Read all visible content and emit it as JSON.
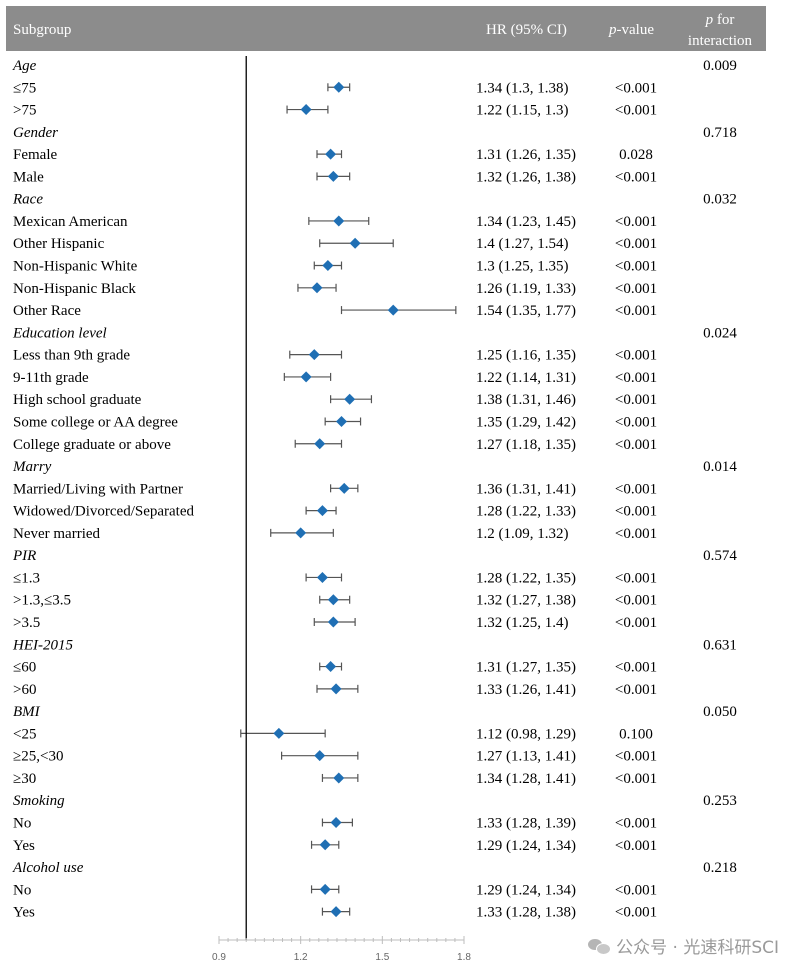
{
  "header": {
    "subgroup": "Subgroup",
    "hr": "HR (95% CI)",
    "pvalue_italic": "p",
    "pvalue_rest": "-value",
    "pint_line1_italic": "p",
    "pint_line1_rest": " for",
    "pint_line2": "interaction"
  },
  "colors": {
    "header_bg": "#8c8c8c",
    "marker": "#1f6fb4",
    "whisker": "#555555",
    "reference_line": "#000000"
  },
  "watermark": "公众号 · 光速科研SCI",
  "chart_data": {
    "type": "forest",
    "reference_value": 1.0,
    "xlim": [
      0.9,
      1.8
    ],
    "x_ticks": [
      "0.9",
      "1.2",
      "1.5",
      "1.8"
    ],
    "rows": [
      {
        "kind": "group",
        "label": "Age",
        "p_interaction": "0.009"
      },
      {
        "kind": "item",
        "label": "≤75",
        "hr": 1.34,
        "lo": 1.3,
        "hi": 1.38,
        "hr_text": "1.34 (1.3, 1.38)",
        "p": "<0.001"
      },
      {
        "kind": "item",
        "label": ">75",
        "hr": 1.22,
        "lo": 1.15,
        "hi": 1.3,
        "hr_text": "1.22 (1.15, 1.3)",
        "p": "<0.001"
      },
      {
        "kind": "group",
        "label": "Gender",
        "p_interaction": "0.718"
      },
      {
        "kind": "item",
        "label": "Female",
        "hr": 1.31,
        "lo": 1.26,
        "hi": 1.35,
        "hr_text": "1.31 (1.26, 1.35)",
        "p": "0.028"
      },
      {
        "kind": "item",
        "label": "Male",
        "hr": 1.32,
        "lo": 1.26,
        "hi": 1.38,
        "hr_text": "1.32 (1.26, 1.38)",
        "p": "<0.001"
      },
      {
        "kind": "group",
        "label": "Race",
        "p_interaction": "0.032"
      },
      {
        "kind": "item",
        "label": "Mexican American",
        "hr": 1.34,
        "lo": 1.23,
        "hi": 1.45,
        "hr_text": "1.34 (1.23, 1.45)",
        "p": "<0.001"
      },
      {
        "kind": "item",
        "label": "Other Hispanic",
        "hr": 1.4,
        "lo": 1.27,
        "hi": 1.54,
        "hr_text": "1.4 (1.27, 1.54)",
        "p": "<0.001"
      },
      {
        "kind": "item",
        "label": "Non-Hispanic White",
        "hr": 1.3,
        "lo": 1.25,
        "hi": 1.35,
        "hr_text": "1.3 (1.25, 1.35)",
        "p": "<0.001"
      },
      {
        "kind": "item",
        "label": "Non-Hispanic Black",
        "hr": 1.26,
        "lo": 1.19,
        "hi": 1.33,
        "hr_text": "1.26 (1.19, 1.33)",
        "p": "<0.001"
      },
      {
        "kind": "item",
        "label": "Other Race",
        "hr": 1.54,
        "lo": 1.35,
        "hi": 1.77,
        "hr_text": "1.54 (1.35, 1.77)",
        "p": "<0.001"
      },
      {
        "kind": "group",
        "label": "Education level",
        "p_interaction": "0.024"
      },
      {
        "kind": "item",
        "label": "Less than 9th grade",
        "hr": 1.25,
        "lo": 1.16,
        "hi": 1.35,
        "hr_text": "1.25 (1.16, 1.35)",
        "p": "<0.001"
      },
      {
        "kind": "item",
        "label": "9-11th grade",
        "hr": 1.22,
        "lo": 1.14,
        "hi": 1.31,
        "hr_text": "1.22 (1.14, 1.31)",
        "p": "<0.001"
      },
      {
        "kind": "item",
        "label": "High school graduate",
        "hr": 1.38,
        "lo": 1.31,
        "hi": 1.46,
        "hr_text": "1.38 (1.31, 1.46)",
        "p": "<0.001"
      },
      {
        "kind": "item",
        "label": "Some college or AA degree",
        "hr": 1.35,
        "lo": 1.29,
        "hi": 1.42,
        "hr_text": "1.35 (1.29, 1.42)",
        "p": "<0.001"
      },
      {
        "kind": "item",
        "label": "College graduate or above",
        "hr": 1.27,
        "lo": 1.18,
        "hi": 1.35,
        "hr_text": "1.27 (1.18, 1.35)",
        "p": "<0.001"
      },
      {
        "kind": "group",
        "label": "Marry",
        "p_interaction": "0.014"
      },
      {
        "kind": "item",
        "label": "Married/Living with Partner",
        "hr": 1.36,
        "lo": 1.31,
        "hi": 1.41,
        "hr_text": "1.36 (1.31, 1.41)",
        "p": "<0.001"
      },
      {
        "kind": "item",
        "label": "Widowed/Divorced/Separated",
        "hr": 1.28,
        "lo": 1.22,
        "hi": 1.33,
        "hr_text": "1.28 (1.22, 1.33)",
        "p": "<0.001"
      },
      {
        "kind": "item",
        "label": "Never married",
        "hr": 1.2,
        "lo": 1.09,
        "hi": 1.32,
        "hr_text": "1.2 (1.09, 1.32)",
        "p": "<0.001"
      },
      {
        "kind": "group",
        "label": "PIR",
        "p_interaction": "0.574"
      },
      {
        "kind": "item",
        "label": "≤1.3",
        "hr": 1.28,
        "lo": 1.22,
        "hi": 1.35,
        "hr_text": "1.28 (1.22, 1.35)",
        "p": "<0.001"
      },
      {
        "kind": "item",
        "label": ">1.3,≤3.5",
        "hr": 1.32,
        "lo": 1.27,
        "hi": 1.38,
        "hr_text": "1.32 (1.27, 1.38)",
        "p": "<0.001"
      },
      {
        "kind": "item",
        "label": ">3.5",
        "hr": 1.32,
        "lo": 1.25,
        "hi": 1.4,
        "hr_text": "1.32 (1.25, 1.4)",
        "p": "<0.001"
      },
      {
        "kind": "group",
        "label": "HEI-2015",
        "p_interaction": "0.631"
      },
      {
        "kind": "item",
        "label": "≤60",
        "hr": 1.31,
        "lo": 1.27,
        "hi": 1.35,
        "hr_text": "1.31 (1.27, 1.35)",
        "p": "<0.001"
      },
      {
        "kind": "item",
        "label": ">60",
        "hr": 1.33,
        "lo": 1.26,
        "hi": 1.41,
        "hr_text": "1.33 (1.26, 1.41)",
        "p": "<0.001"
      },
      {
        "kind": "group",
        "label": "BMI",
        "p_interaction": "0.050"
      },
      {
        "kind": "item",
        "label": "<25",
        "hr": 1.12,
        "lo": 0.98,
        "hi": 1.29,
        "hr_text": "1.12 (0.98, 1.29)",
        "p": "0.100"
      },
      {
        "kind": "item",
        "label": "≥25,<30",
        "hr": 1.27,
        "lo": 1.13,
        "hi": 1.41,
        "hr_text": "1.27 (1.13, 1.41)",
        "p": "<0.001"
      },
      {
        "kind": "item",
        "label": "≥30",
        "hr": 1.34,
        "lo": 1.28,
        "hi": 1.41,
        "hr_text": "1.34 (1.28, 1.41)",
        "p": "<0.001"
      },
      {
        "kind": "group",
        "label": "Smoking",
        "p_interaction": "0.253"
      },
      {
        "kind": "item",
        "label": "No",
        "hr": 1.33,
        "lo": 1.28,
        "hi": 1.39,
        "hr_text": "1.33 (1.28, 1.39)",
        "p": "<0.001"
      },
      {
        "kind": "item",
        "label": "Yes",
        "hr": 1.29,
        "lo": 1.24,
        "hi": 1.34,
        "hr_text": "1.29 (1.24, 1.34)",
        "p": "<0.001"
      },
      {
        "kind": "group",
        "label": "Alcohol use",
        "p_interaction": "0.218"
      },
      {
        "kind": "item",
        "label": "No",
        "hr": 1.29,
        "lo": 1.24,
        "hi": 1.34,
        "hr_text": "1.29 (1.24, 1.34)",
        "p": "<0.001"
      },
      {
        "kind": "item",
        "label": "Yes",
        "hr": 1.33,
        "lo": 1.28,
        "hi": 1.38,
        "hr_text": "1.33 (1.28, 1.38)",
        "p": "<0.001"
      }
    ]
  }
}
